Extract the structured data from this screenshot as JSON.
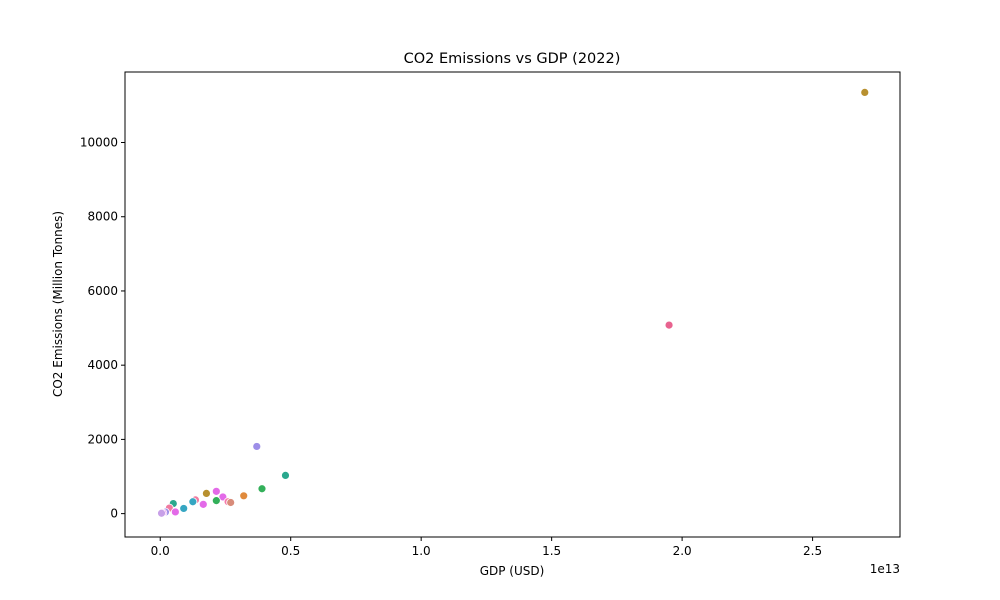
{
  "chart_data": {
    "type": "scatter",
    "title": "CO2 Emissions vs GDP (2022)",
    "xlabel": "GDP (USD)",
    "ylabel": "CO2 Emissions (Million Tonnes)",
    "x_offset_label": "1e13",
    "xlim": [
      -0.135,
      2.835
    ],
    "ylim": [
      -630,
      11900
    ],
    "x_ticks": [
      {
        "value": 0.0,
        "label": "0.0"
      },
      {
        "value": 0.5,
        "label": "0.5"
      },
      {
        "value": 1.0,
        "label": "1.0"
      },
      {
        "value": 1.5,
        "label": "1.5"
      },
      {
        "value": 2.0,
        "label": "2.0"
      },
      {
        "value": 2.5,
        "label": "2.5"
      }
    ],
    "y_ticks": [
      {
        "value": 0,
        "label": "0"
      },
      {
        "value": 2000,
        "label": "2000"
      },
      {
        "value": 4000,
        "label": "4000"
      },
      {
        "value": 6000,
        "label": "6000"
      },
      {
        "value": 8000,
        "label": "8000"
      },
      {
        "value": 10000,
        "label": "10000"
      }
    ],
    "grid": false,
    "legend": "none",
    "points": [
      {
        "x": 2.7,
        "y": 11350,
        "color": "#b8902f"
      },
      {
        "x": 1.95,
        "y": 5080,
        "color": "#e8638f"
      },
      {
        "x": 0.37,
        "y": 1810,
        "color": "#9d8ee8"
      },
      {
        "x": 0.48,
        "y": 1030,
        "color": "#2aa88e"
      },
      {
        "x": 0.39,
        "y": 670,
        "color": "#33b05a"
      },
      {
        "x": 0.32,
        "y": 480,
        "color": "#e08a3c"
      },
      {
        "x": 0.215,
        "y": 600,
        "color": "#e36ae8"
      },
      {
        "x": 0.177,
        "y": 545,
        "color": "#b8902f"
      },
      {
        "x": 0.24,
        "y": 450,
        "color": "#e36ae8"
      },
      {
        "x": 0.26,
        "y": 320,
        "color": "#f57aa8"
      },
      {
        "x": 0.27,
        "y": 300,
        "color": "#d88c7a"
      },
      {
        "x": 0.215,
        "y": 350,
        "color": "#33b05a"
      },
      {
        "x": 0.135,
        "y": 370,
        "color": "#f07aa0"
      },
      {
        "x": 0.125,
        "y": 320,
        "color": "#36a6c2"
      },
      {
        "x": 0.165,
        "y": 250,
        "color": "#e36ae8"
      },
      {
        "x": 0.09,
        "y": 140,
        "color": "#36a6c2"
      },
      {
        "x": 0.05,
        "y": 270,
        "color": "#2aa88e"
      },
      {
        "x": 0.035,
        "y": 150,
        "color": "#f07aa0"
      },
      {
        "x": 0.058,
        "y": 45,
        "color": "#e36ae8"
      },
      {
        "x": 0.02,
        "y": 40,
        "color": "#9d8ee8"
      },
      {
        "x": 0.01,
        "y": 20,
        "color": "#e36ae8"
      },
      {
        "x": 0.005,
        "y": 10,
        "color": "#c8a0e8"
      }
    ]
  }
}
